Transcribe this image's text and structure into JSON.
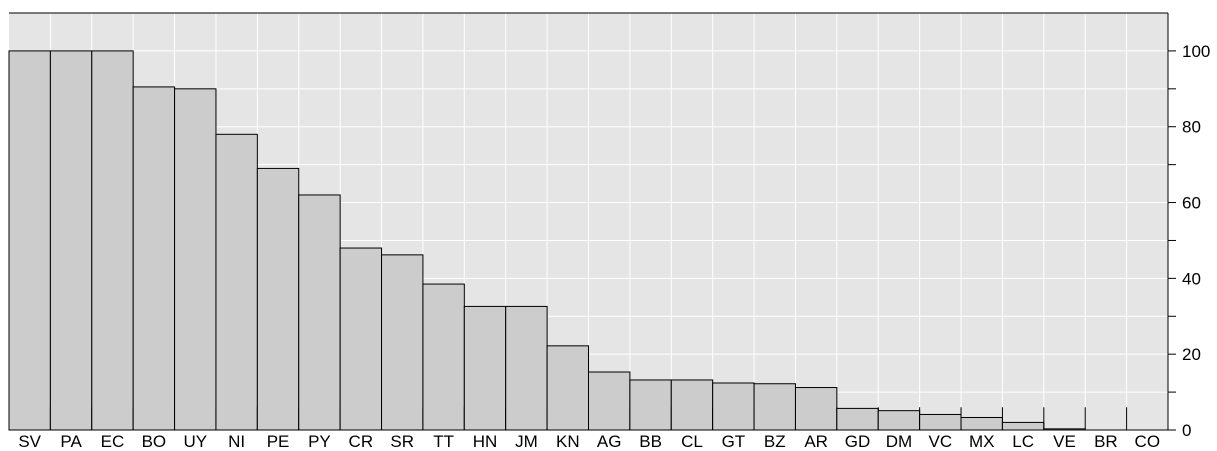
{
  "chart_data": {
    "type": "bar",
    "title": "",
    "xlabel": "",
    "ylabel": "",
    "ylim": [
      0,
      110
    ],
    "y_axis_side": "right",
    "y_ticks": [
      0,
      20,
      40,
      60,
      80,
      100
    ],
    "y_ticks_minor": [
      10,
      30,
      50,
      70,
      90
    ],
    "grid": true,
    "categories": [
      "SV",
      "PA",
      "EC",
      "BO",
      "UY",
      "NI",
      "PE",
      "PY",
      "CR",
      "SR",
      "TT",
      "HN",
      "JM",
      "KN",
      "AG",
      "BB",
      "CL",
      "GT",
      "BZ",
      "AR",
      "GD",
      "DM",
      "VC",
      "MX",
      "LC",
      "VE",
      "BR",
      "CO"
    ],
    "values": [
      100,
      100,
      100,
      90.5,
      90,
      78,
      69,
      62,
      48,
      46.2,
      38.5,
      32.6,
      32.6,
      22.2,
      15.3,
      13.2,
      13.2,
      12.4,
      12.2,
      11.2,
      5.7,
      5.1,
      4.1,
      3.3,
      2.0,
      0.3,
      0,
      0
    ],
    "colors": {
      "bar_fill": "#cccccc",
      "bar_stroke": "#000000",
      "plot_bg": "#e5e5e5",
      "grid": "#ffffff"
    }
  }
}
